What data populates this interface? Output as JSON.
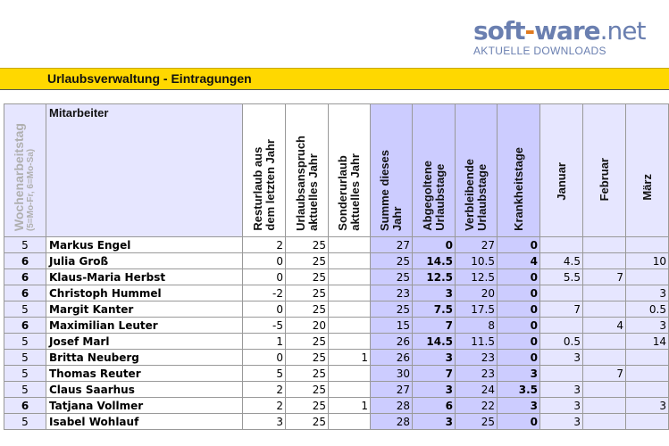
{
  "logo": {
    "main_a": "soft",
    "hyphen": "-",
    "main_b": "ware",
    "main_c": ".net",
    "sub": "AKTUELLE DOWNLOADS"
  },
  "title": "Urlaubsverwaltung - Eintragungen",
  "headers": {
    "wochenarbeitstag": "Wochenarbeitstag",
    "wochenarbeitstag_sub": "(5=Mo-Fr, 6=Mo-Sa)",
    "mitarbeiter": "Mitarbeiter",
    "resturlaub_1": "Resturlaub aus",
    "resturlaub_2": "dem letzten Jahr",
    "anspruch_1": "Urlaubsanspruch",
    "anspruch_2": "aktuelles Jahr",
    "sonder_1": "Sonderurlaub",
    "sonder_2": "aktuelles Jahr",
    "summe_1": "Summe dieses",
    "summe_2": "Jahr",
    "abgegolten_1": "Abgegoltene",
    "abgegolten_2": "Urlaubstage",
    "verbleibend_1": "Verbleibende",
    "verbleibend_2": "Urlaubstage",
    "krank": "Krankheitstage",
    "januar": "Januar",
    "februar": "Februar",
    "maerz": "März"
  },
  "rows": [
    {
      "wt": "5",
      "name": "Markus Engel",
      "rest": "2",
      "anspruch": "25",
      "sonder": "",
      "summe": "27",
      "abg": "0",
      "verbl": "27",
      "krank": "0",
      "jan": "",
      "feb": "",
      "mar": ""
    },
    {
      "wt": "6",
      "name": "Julia Groß",
      "rest": "0",
      "anspruch": "25",
      "sonder": "",
      "summe": "25",
      "abg": "14.5",
      "verbl": "10.5",
      "krank": "4",
      "jan": "4.5",
      "feb": "",
      "mar": "10"
    },
    {
      "wt": "6",
      "name": "Klaus-Maria Herbst",
      "rest": "0",
      "anspruch": "25",
      "sonder": "",
      "summe": "25",
      "abg": "12.5",
      "verbl": "12.5",
      "krank": "0",
      "jan": "5.5",
      "feb": "7",
      "mar": ""
    },
    {
      "wt": "6",
      "name": "Christoph Hummel",
      "rest": "-2",
      "anspruch": "25",
      "sonder": "",
      "summe": "23",
      "abg": "3",
      "verbl": "20",
      "krank": "0",
      "jan": "",
      "feb": "",
      "mar": "3"
    },
    {
      "wt": "5",
      "name": "Margit Kanter",
      "rest": "0",
      "anspruch": "25",
      "sonder": "",
      "summe": "25",
      "abg": "7.5",
      "verbl": "17.5",
      "krank": "0",
      "jan": "7",
      "feb": "",
      "mar": "0.5"
    },
    {
      "wt": "6",
      "name": "Maximilian Leuter",
      "rest": "-5",
      "anspruch": "20",
      "sonder": "",
      "summe": "15",
      "abg": "7",
      "verbl": "8",
      "krank": "0",
      "jan": "",
      "feb": "4",
      "mar": "3"
    },
    {
      "wt": "5",
      "name": "Josef Marl",
      "rest": "1",
      "anspruch": "25",
      "sonder": "",
      "summe": "26",
      "abg": "14.5",
      "verbl": "11.5",
      "krank": "0",
      "jan": "0.5",
      "feb": "",
      "mar": "14"
    },
    {
      "wt": "5",
      "name": "Britta Neuberg",
      "rest": "0",
      "anspruch": "25",
      "sonder": "1",
      "summe": "26",
      "abg": "3",
      "verbl": "23",
      "krank": "0",
      "jan": "3",
      "feb": "",
      "mar": ""
    },
    {
      "wt": "5",
      "name": "Thomas Reuter",
      "rest": "5",
      "anspruch": "25",
      "sonder": "",
      "summe": "30",
      "abg": "7",
      "verbl": "23",
      "krank": "3",
      "jan": "",
      "feb": "7",
      "mar": ""
    },
    {
      "wt": "5",
      "name": "Claus Saarhus",
      "rest": "2",
      "anspruch": "25",
      "sonder": "",
      "summe": "27",
      "abg": "3",
      "verbl": "24",
      "krank": "3.5",
      "jan": "3",
      "feb": "",
      "mar": ""
    },
    {
      "wt": "6",
      "name": "Tatjana Vollmer",
      "rest": "2",
      "anspruch": "25",
      "sonder": "1",
      "summe": "28",
      "abg": "6",
      "verbl": "22",
      "krank": "3",
      "jan": "3",
      "feb": "",
      "mar": "3"
    },
    {
      "wt": "5",
      "name": "Isabel Wohlauf",
      "rest": "3",
      "anspruch": "25",
      "sonder": "",
      "summe": "28",
      "abg": "3",
      "verbl": "25",
      "krank": "0",
      "jan": "3",
      "feb": "",
      "mar": ""
    }
  ],
  "colors": {
    "title_bg": "#ffd800",
    "summary_bg": "#ccccff",
    "month_bg": "#e6e6ff",
    "logo": "#6a7fb0",
    "logo_accent": "#e07a1e"
  }
}
